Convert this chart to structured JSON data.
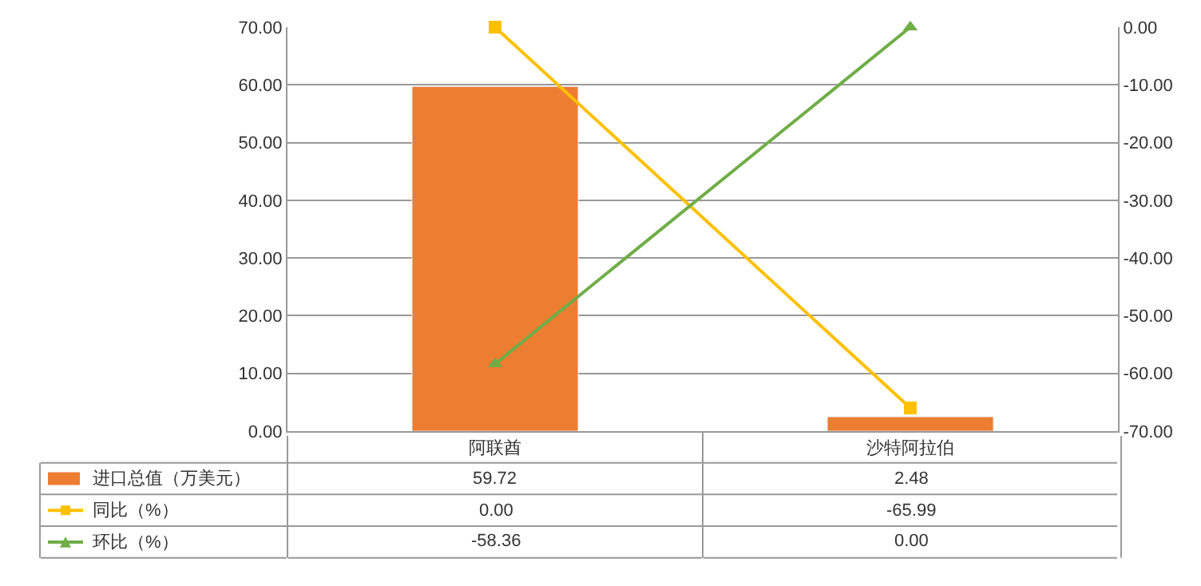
{
  "chart_data": {
    "type": "bar",
    "categories": [
      "阿联酋",
      "沙特阿拉伯"
    ],
    "series": [
      {
        "name": "进口总值（万美元）",
        "color": "#ed7d31",
        "values": [
          59.72,
          2.48
        ],
        "value_labels": [
          "59.72",
          "2.48"
        ]
      },
      {
        "name": "同比（%）",
        "type": "line",
        "axis": "y2",
        "marker": "square",
        "color": "#ffc000",
        "values": [
          0.0,
          -65.99
        ],
        "value_labels": [
          "0.00",
          "-65.99"
        ]
      },
      {
        "name": "环比（%）",
        "type": "line",
        "axis": "y2",
        "marker": "triangle",
        "color": "#70ad47",
        "values": [
          -58.36,
          0.0
        ],
        "value_labels": [
          "-58.36",
          "0.00"
        ]
      }
    ],
    "ylim": [
      0,
      70
    ],
    "yticks": [
      {
        "value": 0,
        "label": "0.00"
      },
      {
        "value": 10,
        "label": "10.00"
      },
      {
        "value": 20,
        "label": "20.00"
      },
      {
        "value": 30,
        "label": "30.00"
      },
      {
        "value": 40,
        "label": "40.00"
      },
      {
        "value": 50,
        "label": "50.00"
      },
      {
        "value": 60,
        "label": "60.00"
      },
      {
        "value": 70,
        "label": "70.00"
      }
    ],
    "y2lim": [
      -70,
      0
    ],
    "y2ticks": [
      {
        "value": 0,
        "label": "0.00"
      },
      {
        "value": -10,
        "label": "-10.00"
      },
      {
        "value": -20,
        "label": "-20.00"
      },
      {
        "value": -30,
        "label": "-30.00"
      },
      {
        "value": -40,
        "label": "-40.00"
      },
      {
        "value": -50,
        "label": "-50.00"
      },
      {
        "value": -60,
        "label": "-60.00"
      },
      {
        "value": -70,
        "label": "-70.00"
      }
    ],
    "grid": "y",
    "legend": "bottom"
  }
}
